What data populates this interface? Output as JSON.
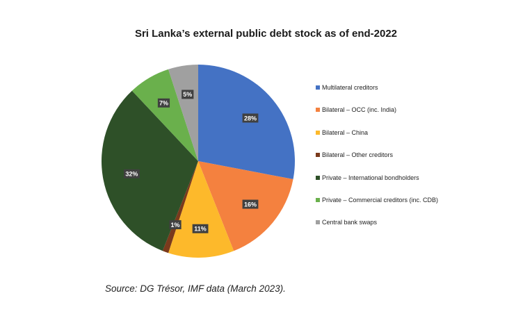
{
  "chart_data": {
    "type": "pie",
    "title": "Sri Lanka’s external public debt stock as of end-2022",
    "slices": [
      {
        "label": "Multilateral creditors",
        "value": 28,
        "display": "28%",
        "color": "#4472C4"
      },
      {
        "label": "Bilateral – OCC (inc. India)",
        "value": 16,
        "display": "16%",
        "color": "#F4813F"
      },
      {
        "label": "Bilateral – China",
        "value": 11,
        "display": "11%",
        "color": "#FDB92B"
      },
      {
        "label": "Bilateral – Other creditors",
        "value": 1,
        "display": "1%",
        "color": "#7A3A1C"
      },
      {
        "label": "Private – International bondholders",
        "value": 32,
        "display": "32%",
        "color": "#2E5028"
      },
      {
        "label": "Private – Commercial creditors (inc. CDB)",
        "value": 7,
        "display": "7%",
        "color": "#6AB04C"
      },
      {
        "label": "Central bank swaps",
        "value": 5,
        "display": "5%",
        "color": "#A0A0A0"
      }
    ],
    "legend_position": "right"
  },
  "source": "Source: DG Trésor, IMF data (March 2023)."
}
